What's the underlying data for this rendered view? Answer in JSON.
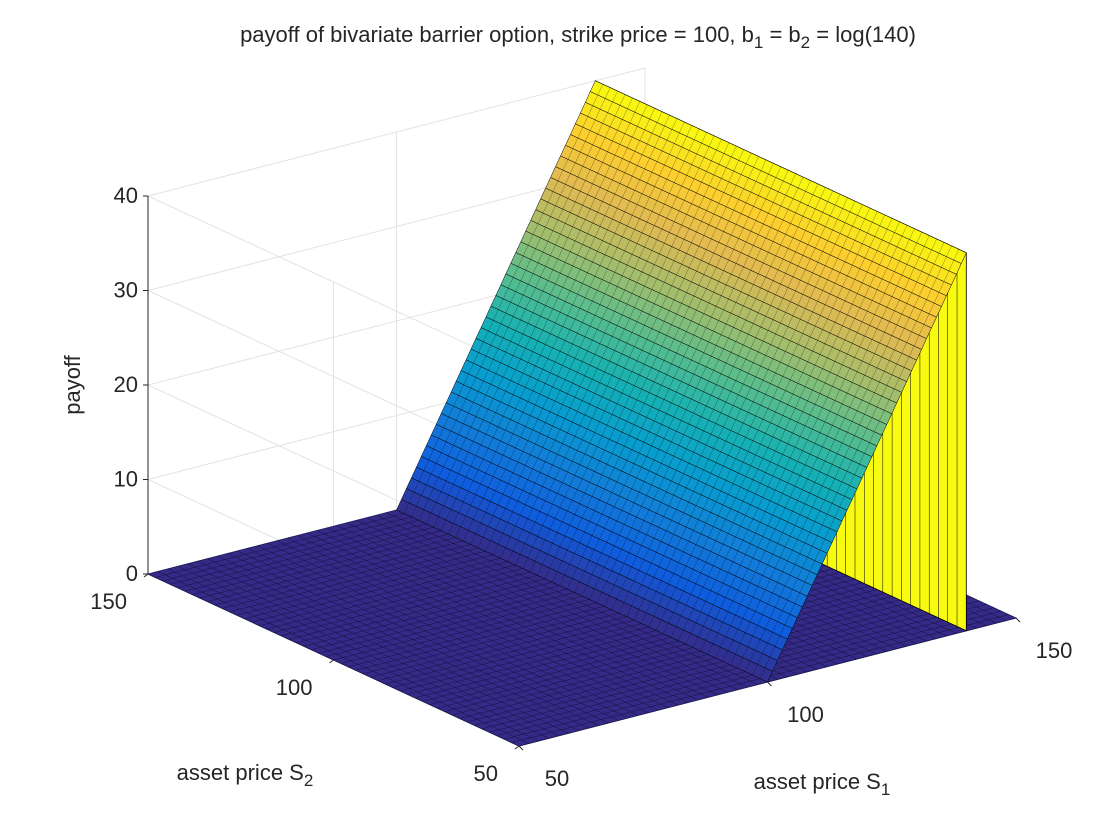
{
  "chart_data": {
    "type": "surface",
    "title_parts": [
      {
        "t": "payoff of bivariate barrier option, strike price = 100, b"
      },
      {
        "t": "1",
        "sub": true
      },
      {
        "t": " = b"
      },
      {
        "t": "2",
        "sub": true
      },
      {
        "t": " = log(140)"
      }
    ],
    "xlabel_parts": [
      {
        "t": "asset price S"
      },
      {
        "t": "1",
        "sub": true
      }
    ],
    "ylabel_parts": [
      {
        "t": "asset price S"
      },
      {
        "t": "2",
        "sub": true
      }
    ],
    "zlabel": "payoff",
    "xlim": [
      50,
      150
    ],
    "ylim": [
      50,
      150
    ],
    "zlim": [
      0,
      40
    ],
    "xticks": [
      50,
      100,
      150
    ],
    "yticks": [
      50,
      100,
      150
    ],
    "zticks": [
      0,
      10,
      20,
      30,
      40
    ],
    "strike": 100,
    "barrier": 140,
    "payoff_rule": "max(S1 - 100, 0) for S1 <= 140, else 0; independent of S2",
    "grid": true,
    "colormap": "parula"
  }
}
